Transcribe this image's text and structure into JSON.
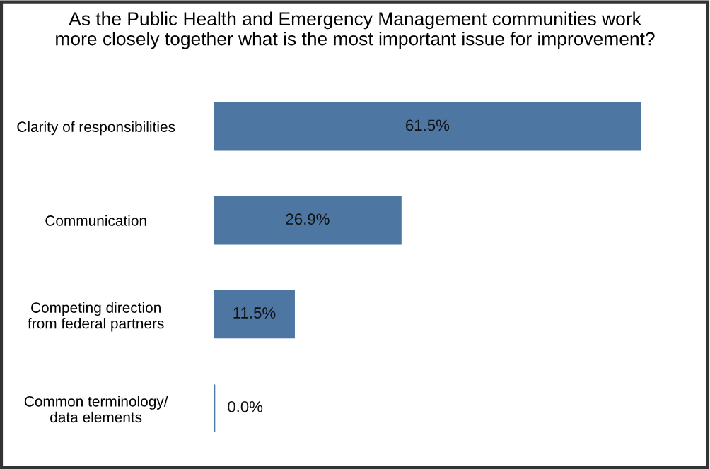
{
  "chart_data": {
    "type": "bar",
    "orientation": "horizontal",
    "title": "As the Public Health and Emergency Management communities work\nmore closely together what is the most important issue for improvement?",
    "categories": [
      "Clarity of responsibilities",
      "Communication",
      "Competing direction\nfrom federal partners",
      "Common terminology/\ndata elements"
    ],
    "values": [
      61.5,
      26.9,
      11.5,
      0.0
    ],
    "value_labels": [
      "61.5%",
      "26.9%",
      "11.5%",
      "0.0%"
    ],
    "color": "#4d76a3",
    "tick_labels": "y",
    "grid": false,
    "legend": false
  }
}
